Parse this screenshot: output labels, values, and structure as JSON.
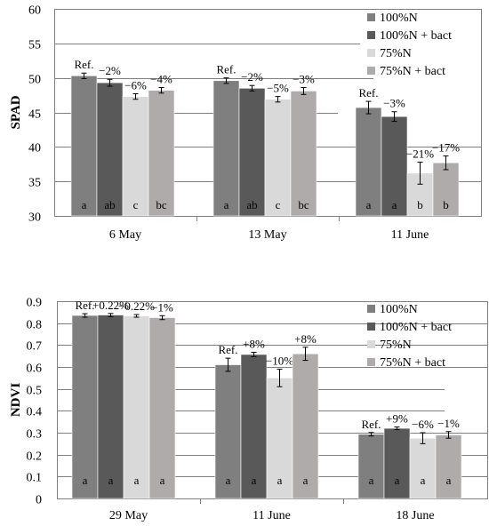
{
  "colors": {
    "c100": "#7f7f7f",
    "c100b": "#595959",
    "c75": "#d9d9d9",
    "c75b": "#afabab"
  },
  "chart_data": [
    {
      "type": "bar",
      "ylabel": "SPAD",
      "ylim": [
        30,
        60
      ],
      "yticks": [
        "30",
        "35",
        "40",
        "45",
        "50",
        "55",
        "60"
      ],
      "categories": [
        "6 May",
        "13 May",
        "11 June"
      ],
      "legend": [
        "100%N",
        "100%N + bact",
        "75%N",
        "75%N + bact"
      ],
      "legend_position": "top-right",
      "series": [
        {
          "name": "100%N",
          "values": [
            50.3,
            49.6,
            45.7
          ],
          "err": [
            0.4,
            0.4,
            0.9
          ],
          "labels": [
            "Ref.",
            "Ref.",
            "Ref."
          ],
          "letters": [
            "a",
            "a",
            "a"
          ]
        },
        {
          "name": "100%N + bact",
          "values": [
            49.3,
            48.5,
            44.4
          ],
          "err": [
            0.5,
            0.4,
            0.7
          ],
          "labels": [
            "−2%",
            "−2%",
            "−3%"
          ],
          "letters": [
            "ab",
            "ab",
            "a"
          ]
        },
        {
          "name": "75%N",
          "values": [
            47.3,
            46.9,
            36.2
          ],
          "err": [
            0.4,
            0.4,
            1.6
          ],
          "labels": [
            "−6%",
            "−5%",
            "−21%"
          ],
          "letters": [
            "c",
            "c",
            "b"
          ]
        },
        {
          "name": "75%N + bact",
          "values": [
            48.2,
            48.1,
            37.7
          ],
          "err": [
            0.4,
            0.5,
            1.0
          ],
          "labels": [
            "−4%",
            "−3%",
            "−17%"
          ],
          "letters": [
            "bc",
            "bc",
            "b"
          ]
        }
      ]
    },
    {
      "type": "bar",
      "ylabel": "NDVI",
      "ylim": [
        0,
        0.9
      ],
      "yticks": [
        "0",
        "0.1",
        "0.2",
        "0.3",
        "0.4",
        "0.5",
        "0.6",
        "0.7",
        "0.8",
        "0.9"
      ],
      "categories": [
        "29 May",
        "11 June",
        "18 June"
      ],
      "legend": [
        "100%N",
        "100%N + bact",
        "75%N",
        "75%N + bact"
      ],
      "legend_position": "top-right",
      "series": [
        {
          "name": "100%N",
          "values": [
            0.835,
            0.61,
            0.293
          ],
          "err": [
            0.008,
            0.03,
            0.008
          ],
          "labels": [
            "Ref.",
            "Ref.",
            "Ref."
          ],
          "letters": [
            "a",
            "a",
            "a"
          ]
        },
        {
          "name": "100%N + bact",
          "values": [
            0.837,
            0.657,
            0.32
          ],
          "err": [
            0.007,
            0.01,
            0.006
          ],
          "labels": [
            "+0.22%",
            "+8%",
            "+9%"
          ],
          "letters": [
            "a",
            "a",
            "a"
          ]
        },
        {
          "name": "75%N",
          "values": [
            0.833,
            0.55,
            0.275
          ],
          "err": [
            0.006,
            0.04,
            0.025
          ],
          "labels": [
            "−0.22%",
            "−10%",
            "−6%"
          ],
          "letters": [
            "a",
            "a",
            "a"
          ]
        },
        {
          "name": "75%N + bact",
          "values": [
            0.825,
            0.66,
            0.29
          ],
          "err": [
            0.009,
            0.03,
            0.015
          ],
          "labels": [
            "−1%",
            "+8%",
            "−1%"
          ],
          "letters": [
            "a",
            "a",
            "a"
          ]
        }
      ]
    }
  ]
}
